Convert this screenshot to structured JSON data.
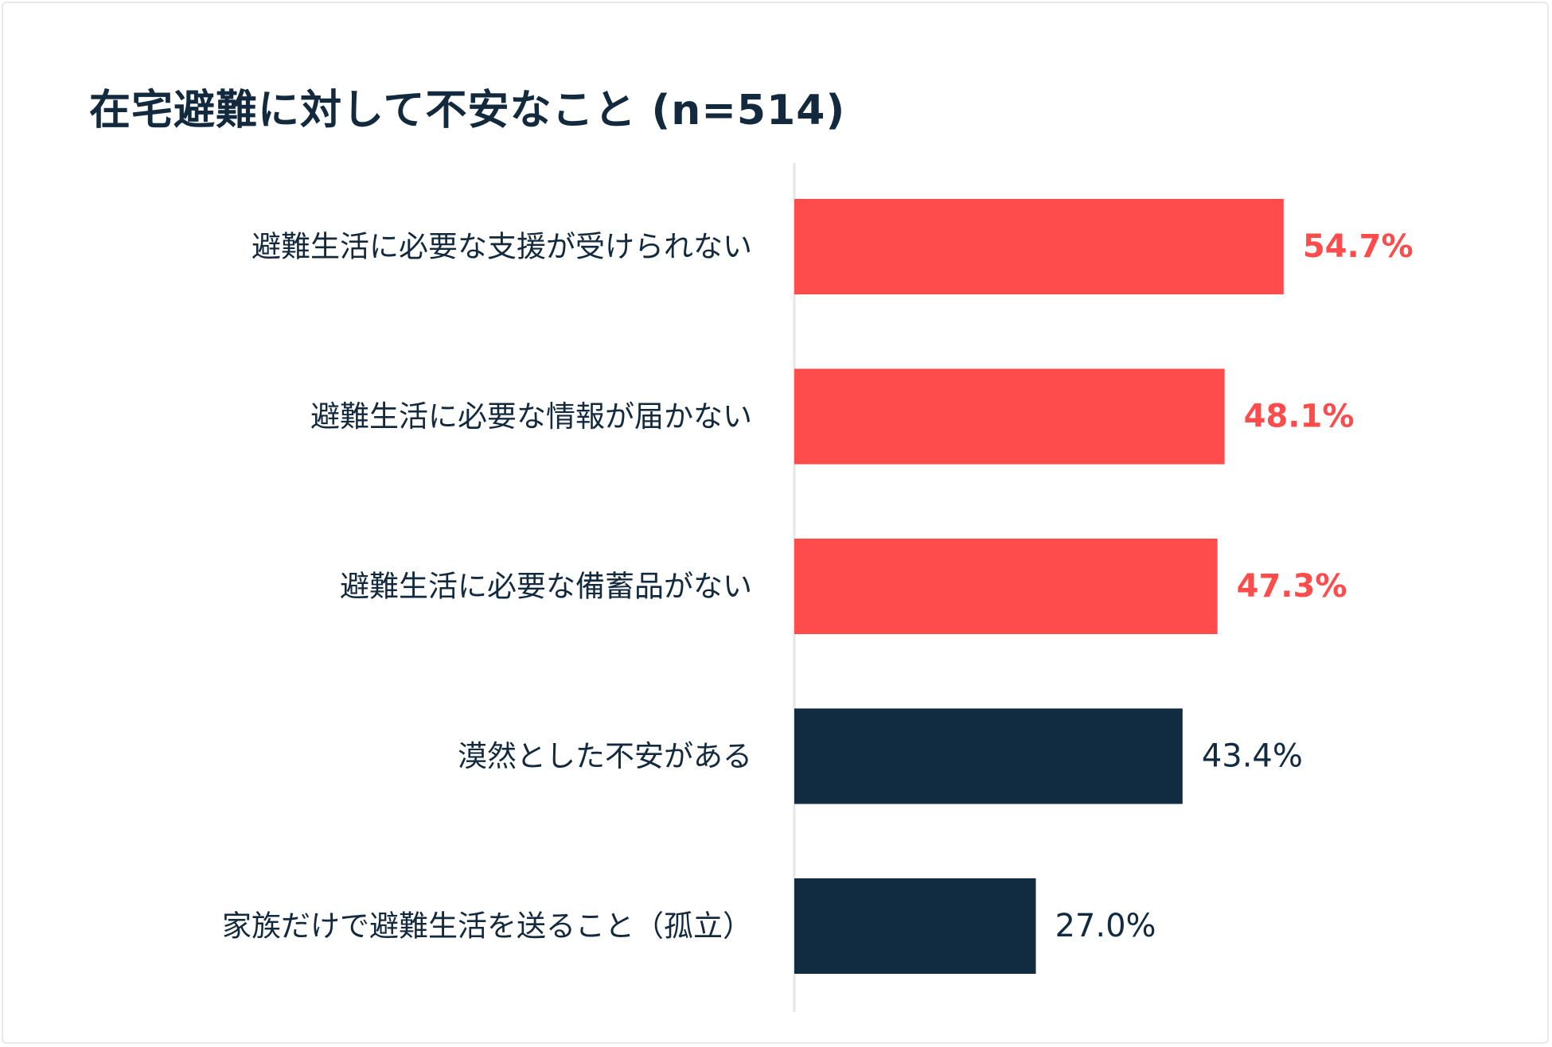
{
  "chart_data": {
    "type": "bar",
    "orientation": "horizontal",
    "title": "在宅避難に対して不安なこと (n=514)",
    "xlabel": "",
    "ylabel": "",
    "xlim": [
      0,
      64
    ],
    "grid": false,
    "unit": "%",
    "categories": [
      "避難生活に必要な支援が受けられない",
      "避難生活に必要な情報が届かない",
      "避難生活に必要な備蓄品がない",
      "漠然とした不安がある",
      "家族だけで避難生活を送ること（孤立）"
    ],
    "values": [
      54.7,
      48.1,
      47.3,
      43.4,
      27.0
    ],
    "value_labels": [
      "54.7%",
      "48.1%",
      "47.3%",
      "43.4%",
      "27.0%"
    ],
    "highlighted": [
      true,
      true,
      true,
      false,
      false
    ],
    "colors": {
      "highlight": "#fe4b4b",
      "default": "#112b40",
      "axis": "#e6e6e6"
    }
  }
}
